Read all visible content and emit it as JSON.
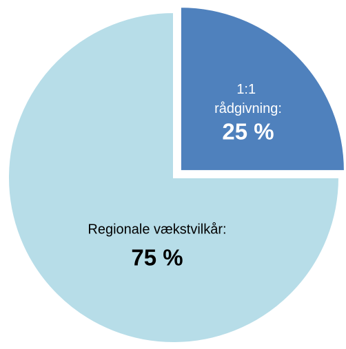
{
  "chart_data": {
    "type": "pie",
    "categories": [
      "1:1 rådgivning:",
      "Regionale vækstvilkår:"
    ],
    "values": [
      25,
      75
    ],
    "value_labels": [
      "25 %",
      "75 %"
    ],
    "colors": [
      "#4f81bd",
      "#b7dde8"
    ]
  }
}
